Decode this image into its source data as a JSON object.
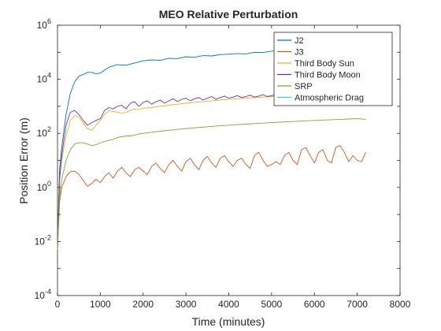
{
  "chart_data": {
    "type": "line",
    "title": "MEO Relative Perturbation",
    "xlabel": "Time (minutes)",
    "ylabel": "Position Error (m)",
    "xlim": [
      0,
      8000
    ],
    "ylim": [
      0.0001,
      1000000
    ],
    "yscale": "log",
    "grid": false,
    "legend_position": "top-right",
    "x_ticks": [
      0,
      1000,
      2000,
      3000,
      4000,
      5000,
      6000,
      7000,
      8000
    ],
    "y_ticks": [
      {
        "base": "10",
        "exp": "-4"
      },
      {
        "base": "10",
        "exp": "-2"
      },
      {
        "base": "10",
        "exp": "0"
      },
      {
        "base": "10",
        "exp": "2"
      },
      {
        "base": "10",
        "exp": "4"
      },
      {
        "base": "10",
        "exp": "6"
      }
    ],
    "series": [
      {
        "name": "J2",
        "color": "#0072BD",
        "x": [
          0,
          50,
          100,
          200,
          300,
          400,
          500,
          600,
          700,
          800,
          900,
          1000,
          1100,
          1200,
          1400,
          1600,
          1800,
          2000,
          2200,
          2400,
          2600,
          2800,
          3000,
          3200,
          3400,
          3600,
          3800,
          4000,
          4200,
          4400,
          4600,
          4800,
          5000,
          5200,
          5500
        ],
        "y": [
          0.01,
          5,
          30,
          500,
          3000,
          8000,
          13000,
          15000,
          18000,
          18000,
          16000,
          17000,
          22000,
          28000,
          35000,
          33000,
          40000,
          48000,
          52000,
          50000,
          60000,
          58000,
          68000,
          65000,
          75000,
          73000,
          82000,
          85000,
          90000,
          87000,
          100000,
          98000,
          110000,
          115000,
          120000
        ]
      },
      {
        "name": "J3",
        "color": "#D95319",
        "x": [
          0,
          50,
          100,
          200,
          300,
          400,
          500,
          600,
          700,
          800,
          900,
          1000,
          1100,
          1200,
          1300,
          1400,
          1500,
          1600,
          1700,
          1800,
          1900,
          2000,
          2100,
          2200,
          2300,
          2400,
          2500,
          2600,
          2700,
          2800,
          2900,
          3000,
          3100,
          3200,
          3300,
          3400,
          3500,
          3600,
          3700,
          3800,
          3900,
          4000,
          4100,
          4200,
          4300,
          4400,
          4500,
          4600,
          4700,
          4800,
          4900,
          5000,
          5100,
          5200,
          5300,
          5400,
          5500,
          5600,
          5700,
          5800,
          5900,
          6000,
          6100,
          6200,
          6300,
          6400,
          6500,
          6600,
          6700,
          6800,
          6900,
          7000,
          7100,
          7200
        ],
        "y": [
          0.005,
          0.3,
          1.0,
          2.5,
          3.8,
          4.0,
          3.0,
          1.8,
          1.1,
          1.4,
          2.0,
          1.5,
          2.5,
          3.5,
          2.2,
          4.0,
          5.5,
          3.5,
          2.5,
          4.5,
          5.5,
          4.0,
          3.0,
          6.0,
          8.0,
          5.0,
          3.5,
          7.0,
          10,
          6.0,
          4.0,
          9.0,
          12,
          7.0,
          4.5,
          10,
          14,
          8.0,
          5.5,
          12,
          15,
          9.0,
          6.0,
          10,
          12,
          7.0,
          5.0,
          15,
          20,
          10,
          6.0,
          7.0,
          9.0,
          7.0,
          15,
          20,
          10,
          7.0,
          25,
          30,
          15,
          8.0,
          20,
          25,
          10,
          8.0,
          30,
          35,
          20,
          9.0,
          15,
          10,
          9.0,
          20
        ]
      },
      {
        "name": "Third Body Sun",
        "color": "#EDB120",
        "x": [
          0,
          50,
          100,
          150,
          200,
          300,
          400,
          500,
          600,
          700,
          800,
          900,
          1000,
          1100,
          1200,
          1300,
          1400,
          1500,
          1600,
          1700,
          1800,
          1900,
          2000,
          2200,
          2400,
          2600,
          2800,
          3000,
          3200,
          3400,
          3600,
          3800,
          4000,
          4200,
          4400,
          4600,
          4800,
          5000,
          5200,
          5400,
          5600,
          5800,
          6000,
          6200,
          6400,
          6600,
          6800,
          7000,
          7200
        ],
        "y": [
          0.005,
          2,
          10,
          30,
          80,
          300,
          450,
          400,
          250,
          150,
          130,
          200,
          300,
          500,
          700,
          650,
          600,
          550,
          600,
          700,
          800,
          750,
          850,
          900,
          1000,
          1100,
          1200,
          1300,
          1400,
          1500,
          1600,
          1700,
          1800,
          1900,
          2000,
          2100,
          2200,
          2300,
          2400,
          2500,
          2600,
          2700,
          2800,
          2900,
          3000,
          3100,
          3200,
          3300,
          3400
        ]
      },
      {
        "name": "Third Body Moon",
        "color": "#7E2F8E",
        "x": [
          0,
          50,
          100,
          150,
          200,
          300,
          400,
          500,
          600,
          700,
          800,
          900,
          1000,
          1100,
          1200,
          1300,
          1400,
          1500,
          1600,
          1700,
          1800,
          1900,
          2000,
          2100,
          2200,
          2300,
          2400,
          2500,
          2600,
          2700,
          2800,
          2900,
          3000,
          3100,
          3200,
          3300,
          3400,
          3500,
          3600,
          3700,
          3800,
          3900,
          4000,
          4100,
          4200,
          4300,
          4400,
          4500,
          4600,
          4700,
          4800,
          4900,
          5000,
          5100,
          5200,
          5300,
          5400,
          5500,
          5600,
          5700,
          5800,
          5900,
          6000,
          6200,
          6400,
          6600,
          6800,
          7000,
          7200
        ],
        "y": [
          0.005,
          2,
          15,
          60,
          200,
          600,
          700,
          500,
          300,
          200,
          250,
          300,
          350,
          700,
          900,
          800,
          1000,
          1100,
          800,
          1300,
          1500,
          1000,
          1400,
          1600,
          1200,
          1500,
          1700,
          1300,
          1600,
          1900,
          1500,
          1800,
          2000,
          1600,
          1900,
          2100,
          1700,
          2000,
          2300,
          1800,
          2100,
          2400,
          2000,
          2200,
          2500,
          2100,
          2300,
          2600,
          2200,
          2400,
          2700,
          2300,
          2500,
          2800,
          2400,
          2600,
          2900,
          2500,
          2700,
          3000,
          2600,
          2800,
          3100,
          3200,
          3300,
          3400,
          3500,
          3600,
          3700
        ]
      },
      {
        "name": "SRP",
        "color": "#77AC30",
        "x": [
          0,
          50,
          100,
          200,
          300,
          400,
          500,
          600,
          700,
          800,
          900,
          1000,
          1100,
          1200,
          1300,
          1400,
          1500,
          1600,
          1700,
          1800,
          1900,
          2000,
          2200,
          2400,
          2600,
          2800,
          3000,
          3200,
          3400,
          3600,
          3800,
          4000,
          4200,
          4400,
          4600,
          4800,
          5000,
          5200,
          5400,
          5600,
          5800,
          6000,
          6200,
          6400,
          6600,
          6800,
          7000,
          7200
        ],
        "y": [
          0.005,
          0.5,
          2,
          10,
          25,
          40,
          45,
          45,
          40,
          35,
          38,
          45,
          50,
          55,
          60,
          70,
          75,
          80,
          80,
          85,
          95,
          100,
          110,
          120,
          130,
          140,
          150,
          160,
          170,
          180,
          190,
          200,
          210,
          220,
          230,
          240,
          250,
          260,
          270,
          280,
          290,
          300,
          310,
          320,
          330,
          340,
          350,
          330
        ]
      },
      {
        "name": "Atmospheric Drag",
        "color": "#4DBEEE",
        "x": [],
        "y": []
      }
    ]
  }
}
